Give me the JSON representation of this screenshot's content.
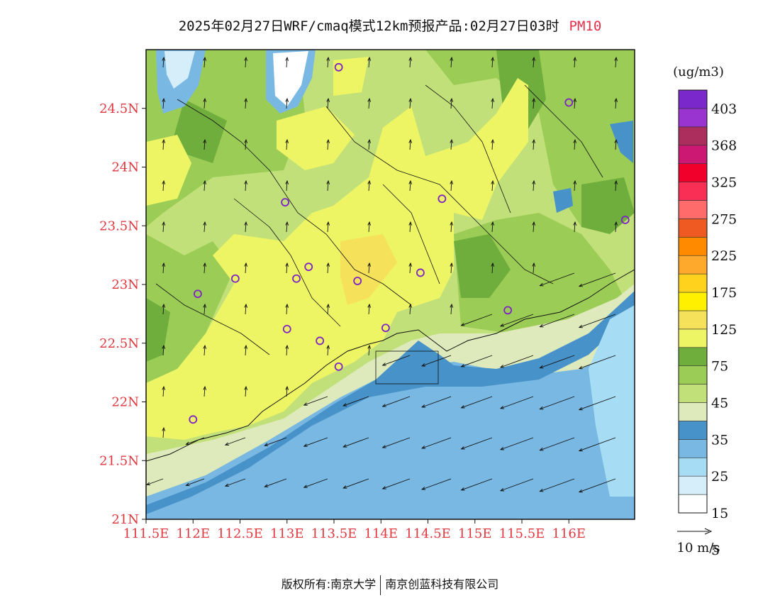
{
  "title": {
    "text": "2025年02月27日WRF/cmaq模式12km预报产品:02月27日03时",
    "pollutant": "PM10"
  },
  "map": {
    "lat_labels": [
      "24.5N",
      "24N",
      "23.5N",
      "23N",
      "22.5N",
      "22N",
      "21.5N",
      "21N"
    ],
    "lon_labels": [
      "111.5E",
      "112E",
      "112.5E",
      "113E",
      "113.5E",
      "114E",
      "114.5E",
      "115E",
      "115.5E",
      "116E"
    ],
    "lat_range": [
      21.0,
      25.0
    ],
    "lon_range": [
      111.5,
      116.7
    ],
    "city_marker_color": "#7d22c4",
    "wind_reference": "10 m/s"
  },
  "colorbar": {
    "unit": "(ug/m3)",
    "labels": [
      "403",
      "368",
      "325",
      "275",
      "225",
      "175",
      "125",
      "75",
      "45",
      "35",
      "25",
      "15",
      "5"
    ],
    "colors": [
      "#ffffff",
      "#d6eefa",
      "#a6dcf4",
      "#78b8e2",
      "#4792c8",
      "#dfeabc",
      "#c2e07a",
      "#9bcc55",
      "#6fae3c",
      "#eef564",
      "#f5e25a",
      "#fff000",
      "#ffd21e",
      "#ffa92c",
      "#ff8a00",
      "#ef5a22",
      "#ff6a6a",
      "#fa2f55",
      "#f0002a",
      "#cc1873",
      "#ac2e5c",
      "#9a34d0",
      "#7a28cc"
    ]
  },
  "footer": {
    "left": "版权所有:南京大学",
    "right": "南京创蓝科技有限公司"
  }
}
